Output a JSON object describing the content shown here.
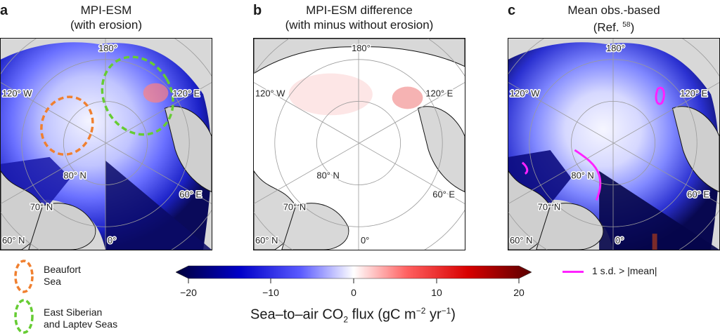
{
  "panels": [
    {
      "letter": "a",
      "title_line1": "MPI-ESM",
      "title_line2": "(with erosion)"
    },
    {
      "letter": "b",
      "title_line1": "MPI-ESM difference",
      "title_line2": "(with minus without erosion)"
    },
    {
      "letter": "c",
      "title_line1": "Mean obs.-based",
      "title_line2_prefix": "(Ref. ",
      "title_line2_ref": "58",
      "title_line2_suffix": ")"
    }
  ],
  "map_labels": {
    "lon_180": "180°",
    "lon_120w": "120° W",
    "lon_120e": "120° E",
    "lon_60e": "60° E",
    "lon_60n": "60° N",
    "lon_0": "0°",
    "lat_80": "80° N",
    "lat_70": "70° N"
  },
  "legend": {
    "beaufort_line1": "Beaufort",
    "beaufort_line2": "Sea",
    "esls_line1": "East Siberian",
    "esls_line2": "and Laptev Seas",
    "sd_label": "1 s.d. > |mean|",
    "beaufort_color": "#f08030",
    "esls_color": "#66cc33",
    "sd_color": "#ff22ff"
  },
  "colorbar": {
    "ticks": [
      "−20",
      "−10",
      "0",
      "10",
      "20"
    ],
    "title_prefix": "Sea–to–air CO",
    "title_sub": "2",
    "title_mid": " flux (gC m",
    "title_sup1": "−2",
    "title_mid2": " yr",
    "title_sup2": "−1",
    "title_suffix": ")",
    "cmap": [
      "#00003a",
      "#0000c8",
      "#5a5aff",
      "#ffffff",
      "#ff6060",
      "#d80000",
      "#5a0000"
    ]
  }
}
